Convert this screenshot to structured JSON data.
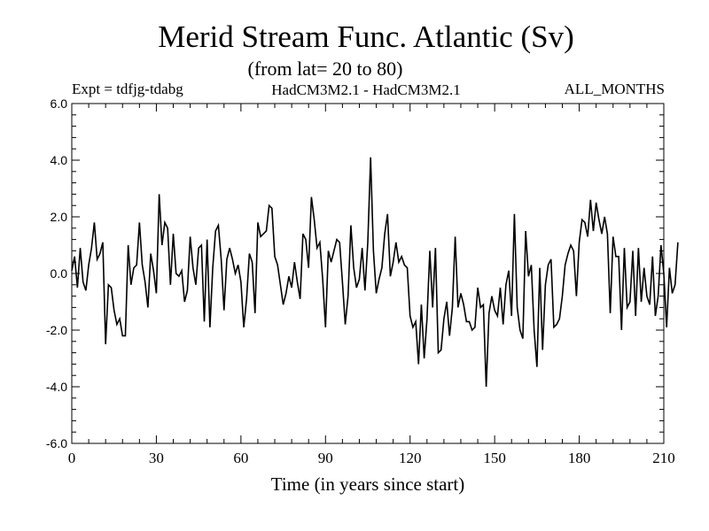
{
  "chart_data": {
    "type": "line",
    "title": "Merid Stream Func. Atlantic (Sv)",
    "subtitle": "(from lat= 20 to 80)",
    "annotations": {
      "expt": "Expt = tdfjg-tdabg",
      "model": "HadCM3M2.1 - HadCM3M2.1",
      "period": "ALL_MONTHS"
    },
    "xlabel": "Time (in years since start)",
    "ylabel": "",
    "xlim": [
      0,
      210
    ],
    "ylim": [
      -6.0,
      6.0
    ],
    "xticks": [
      0,
      30,
      60,
      90,
      120,
      150,
      180,
      210
    ],
    "yticks": [
      -6.0,
      -4.0,
      -2.0,
      0.0,
      2.0,
      4.0,
      6.0
    ],
    "xtick_labels": [
      "0",
      "30",
      "60",
      "90",
      "120",
      "150",
      "180",
      "210"
    ],
    "ytick_labels": [
      "-6.0",
      "-4.0",
      "-2.0",
      "0.0",
      "2.0",
      "4.0",
      "6.0"
    ],
    "grid": false,
    "series": [
      {
        "name": "tdfjg-tdabg",
        "x_start": 0,
        "x_step": 1,
        "values": [
          0.1,
          0.6,
          -0.5,
          0.9,
          -0.3,
          -0.6,
          0.3,
          0.9,
          1.8,
          0.5,
          0.7,
          1.1,
          -2.5,
          -0.4,
          -0.5,
          -1.3,
          -1.8,
          -1.6,
          -2.2,
          -2.2,
          1.0,
          -0.4,
          0.2,
          0.3,
          1.8,
          0.3,
          -0.3,
          -1.2,
          0.7,
          0.1,
          -0.7,
          2.8,
          1.0,
          1.8,
          1.6,
          -0.4,
          1.4,
          0.0,
          -0.1,
          0.1,
          -1.0,
          -0.6,
          1.3,
          0.2,
          -0.4,
          0.9,
          1.0,
          -1.7,
          1.2,
          -1.9,
          0.2,
          1.5,
          1.7,
          0.5,
          -1.3,
          0.5,
          0.9,
          0.5,
          0.0,
          0.3,
          -0.3,
          -1.9,
          -0.9,
          0.7,
          0.4,
          -1.4,
          1.8,
          1.3,
          1.4,
          1.5,
          2.4,
          2.3,
          0.6,
          0.3,
          -0.4,
          -1.1,
          -0.7,
          -0.1,
          -0.5,
          0.4,
          -0.3,
          -0.9,
          1.4,
          1.2,
          0.2,
          2.7,
          1.9,
          0.9,
          1.1,
          -0.2,
          -1.9,
          0.8,
          0.4,
          0.8,
          1.2,
          1.1,
          -0.3,
          -1.8,
          -0.8,
          1.7,
          0.2,
          -0.5,
          -0.2,
          0.9,
          -0.6,
          1.1,
          4.1,
          0.8,
          -0.7,
          -0.2,
          0.2,
          1.4,
          2.1,
          -0.1,
          0.4,
          1.1,
          0.4,
          0.6,
          0.3,
          0.2,
          -1.5,
          -1.9,
          -1.7,
          -3.2,
          -1.1,
          -3.0,
          -1.6,
          0.8,
          -1.2,
          0.9,
          -2.8,
          -2.7,
          -1.6,
          -1.0,
          -2.2,
          -1.2,
          1.3,
          -1.2,
          -0.7,
          -1.1,
          -1.7,
          -1.7,
          -2.0,
          -1.9,
          -0.5,
          -1.2,
          -1.1,
          -4.0,
          -1.4,
          -0.8,
          -1.3,
          -1.5,
          -0.5,
          -1.8,
          -0.4,
          0.1,
          -1.5,
          2.1,
          -1.2,
          -2.0,
          -2.3,
          1.5,
          -0.1,
          0.3,
          -2.0,
          -3.3,
          0.2,
          -2.7,
          -0.4,
          0.3,
          0.5,
          -1.9,
          -1.8,
          -1.6,
          -0.8,
          0.3,
          0.7,
          1.0,
          0.8,
          -0.8,
          1.1,
          1.9,
          1.8,
          1.3,
          2.6,
          1.5,
          2.5,
          1.9,
          1.4,
          2.0,
          1.4,
          -1.4,
          1.3,
          0.6,
          0.6,
          -2.0,
          0.9,
          -1.2,
          -1.0,
          0.8,
          -1.5,
          0.9,
          -1.0,
          0.2,
          -0.8,
          -1.1,
          0.6,
          -1.5,
          -0.8,
          1.0,
          0.0,
          -1.9,
          0.2,
          -0.7,
          -0.4,
          1.1
        ]
      }
    ],
    "colors": {
      "line": "#000000",
      "axis": "#000000",
      "background": "#ffffff"
    }
  }
}
